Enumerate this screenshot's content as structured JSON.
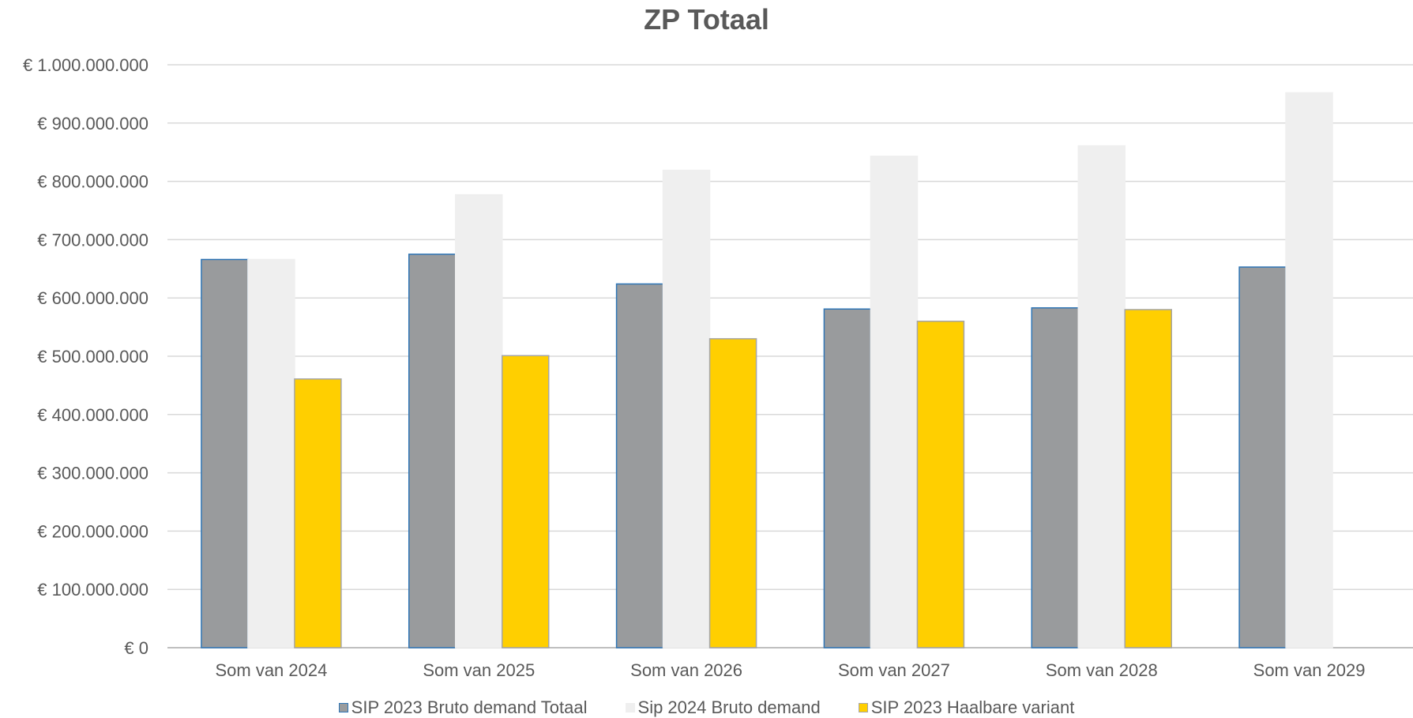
{
  "chart_data": {
    "type": "bar",
    "title": "ZP Totaal",
    "xlabel": "",
    "ylabel": "",
    "ylim": [
      0,
      1000000000
    ],
    "yticks": [
      0,
      100000000,
      200000000,
      300000000,
      400000000,
      500000000,
      600000000,
      700000000,
      800000000,
      900000000,
      1000000000
    ],
    "ytick_labels": [
      "€ 0",
      "€ 100.000.000",
      "€ 200.000.000",
      "€ 300.000.000",
      "€ 400.000.000",
      "€ 500.000.000",
      "€ 600.000.000",
      "€ 700.000.000",
      "€ 800.000.000",
      "€ 900.000.000",
      "€ 1.000.000.000"
    ],
    "categories": [
      "Som van 2024",
      "Som van 2025",
      "Som van 2026",
      "Som van 2027",
      "Som van 2028",
      "Som van 2029"
    ],
    "series": [
      {
        "name": "SIP 2023 Bruto demand Totaal",
        "color": "#999b9d",
        "stroke": "#2e75b6",
        "values": [
          666000000,
          675000000,
          624000000,
          581000000,
          583000000,
          653000000
        ]
      },
      {
        "name": "Sip 2024 Bruto demand",
        "color": "#efefef",
        "stroke": "#efefef",
        "values": [
          666000000,
          777000000,
          819000000,
          843000000,
          861000000,
          952000000
        ]
      },
      {
        "name": "SIP 2023 Haalbare variant",
        "color": "#ffcf00",
        "stroke": "#a6a6a6",
        "values": [
          461000000,
          501000000,
          530000000,
          560000000,
          580000000,
          null
        ]
      }
    ],
    "grid": true,
    "legend_position": "bottom"
  }
}
